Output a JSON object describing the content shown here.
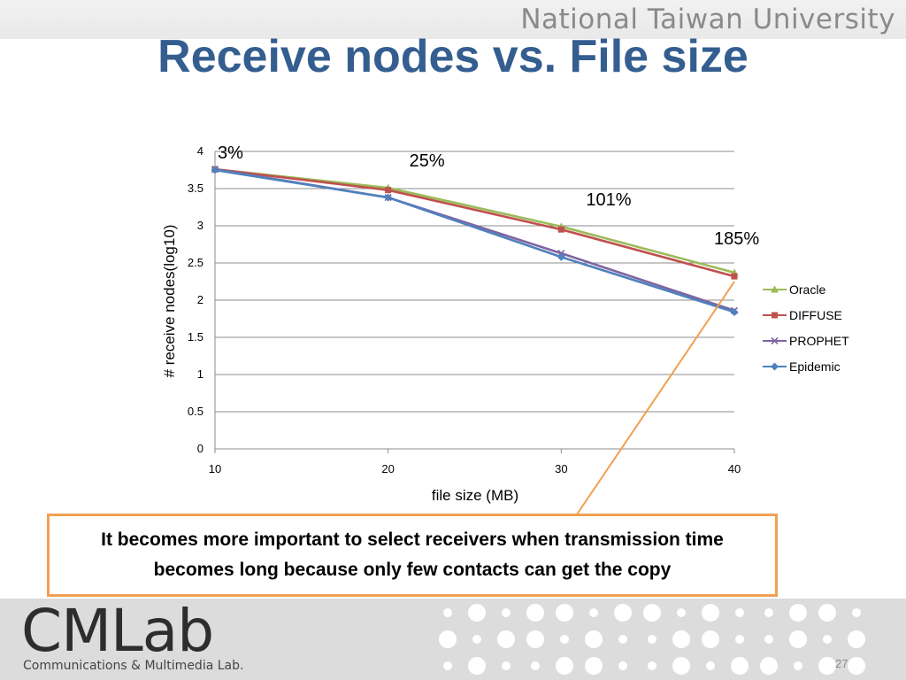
{
  "header": {
    "university": "National Taiwan University",
    "title": "Receive nodes vs. File size"
  },
  "chart_data": {
    "type": "line",
    "x": [
      10,
      20,
      30,
      40
    ],
    "xlabel": "file size (MB)",
    "ylabel": "# receive  nodes(log10)",
    "ylim": [
      0,
      4
    ],
    "yticks": [
      0,
      0.5,
      1,
      1.5,
      2,
      2.5,
      3,
      3.5,
      4
    ],
    "xticks": [
      10,
      20,
      30,
      40
    ],
    "grid": true,
    "legend": "right",
    "series": [
      {
        "name": "Oracle",
        "values": [
          3.76,
          3.51,
          2.99,
          2.37
        ],
        "color": "#9bbb59",
        "marker": "triangle"
      },
      {
        "name": "DIFFUSE",
        "values": [
          3.76,
          3.48,
          2.95,
          2.32
        ],
        "color": "#c0504d",
        "marker": "square"
      },
      {
        "name": "PROPHET",
        "values": [
          3.76,
          3.38,
          2.63,
          1.86
        ],
        "color": "#8064a2",
        "marker": "x"
      },
      {
        "name": "Epidemic",
        "values": [
          3.75,
          3.38,
          2.58,
          1.84
        ],
        "color": "#4f81bd",
        "marker": "diamond"
      }
    ],
    "annotations": [
      {
        "text": "3%",
        "x": 10
      },
      {
        "text": "25%",
        "x": 20
      },
      {
        "text": "101%",
        "x": 30
      },
      {
        "text": "185%",
        "x": 40
      }
    ]
  },
  "callout": {
    "text": "It becomes more important to select receivers when transmission time becomes long because only few contacts can get the copy",
    "border_color": "#f0a050"
  },
  "footer": {
    "logo": "CMLab",
    "logo_subtitle": "Communications & Multimedia Lab.",
    "page_number": "27"
  }
}
